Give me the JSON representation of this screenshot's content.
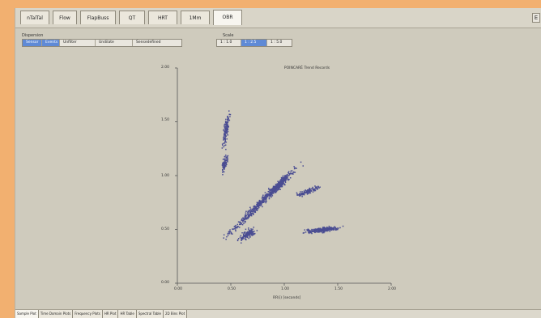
{
  "tabs": [
    {
      "label": "nTalTal",
      "active": false
    },
    {
      "label": "Flow",
      "active": false
    },
    {
      "label": "FlapBuss",
      "active": false
    },
    {
      "label": "QT",
      "active": false
    },
    {
      "label": "HRT",
      "active": false
    },
    {
      "label": "1Mm",
      "active": false
    },
    {
      "label": "OBR",
      "active": true
    }
  ],
  "corner_button": "E",
  "dispersion": {
    "label": "Dispersion",
    "options": [
      {
        "label": "Sensor",
        "selected": true
      },
      {
        "label": "Events",
        "selected": true
      },
      {
        "label": "Unfilter",
        "selected": false
      },
      {
        "label": "Undilate",
        "selected": false
      },
      {
        "label": "Sensedefined",
        "selected": false
      }
    ]
  },
  "scale": {
    "label": "Scale",
    "options": [
      {
        "label": "1 : 1.0",
        "selected": false
      },
      {
        "label": "1 : 2.5",
        "selected": true
      },
      {
        "label": "1 : 5.0",
        "selected": false
      }
    ]
  },
  "chart_data": {
    "type": "scatter",
    "title": "POINCARÉ Trend Records",
    "xlabel": "RR(i) [seconds]",
    "ylabel": "",
    "xlim": [
      0.0,
      2.0
    ],
    "ylim": [
      0.0,
      2.0
    ],
    "x_ticks": [
      "0.00",
      "0.50",
      "1.00",
      "1.50",
      "2.00"
    ],
    "y_ticks": [
      "0.00",
      "0.50",
      "1.00",
      "1.50",
      "2.00"
    ],
    "point_color": "#4a4d92",
    "clusters": [
      {
        "center": [
          0.78,
          0.76
        ],
        "points": 520
      },
      {
        "center": [
          0.95,
          0.92
        ],
        "points": 220
      },
      {
        "center": [
          0.45,
          1.42
        ],
        "points": 140
      },
      {
        "center": [
          0.44,
          1.12
        ],
        "points": 90
      },
      {
        "center": [
          1.35,
          0.5
        ],
        "points": 260
      },
      {
        "center": [
          1.22,
          0.86
        ],
        "points": 120
      },
      {
        "center": [
          0.65,
          0.46
        ],
        "points": 140
      }
    ]
  },
  "bottom_tabs": [
    {
      "label": "Sample Plot",
      "active": true
    },
    {
      "label": "Time Domain Plots",
      "active": false
    },
    {
      "label": "Frequency Plots",
      "active": false
    },
    {
      "label": "HR Plot",
      "active": false
    },
    {
      "label": "HR Table",
      "active": false
    },
    {
      "label": "Spectral Table",
      "active": false
    },
    {
      "label": "2D Bins Plot",
      "active": false
    }
  ]
}
